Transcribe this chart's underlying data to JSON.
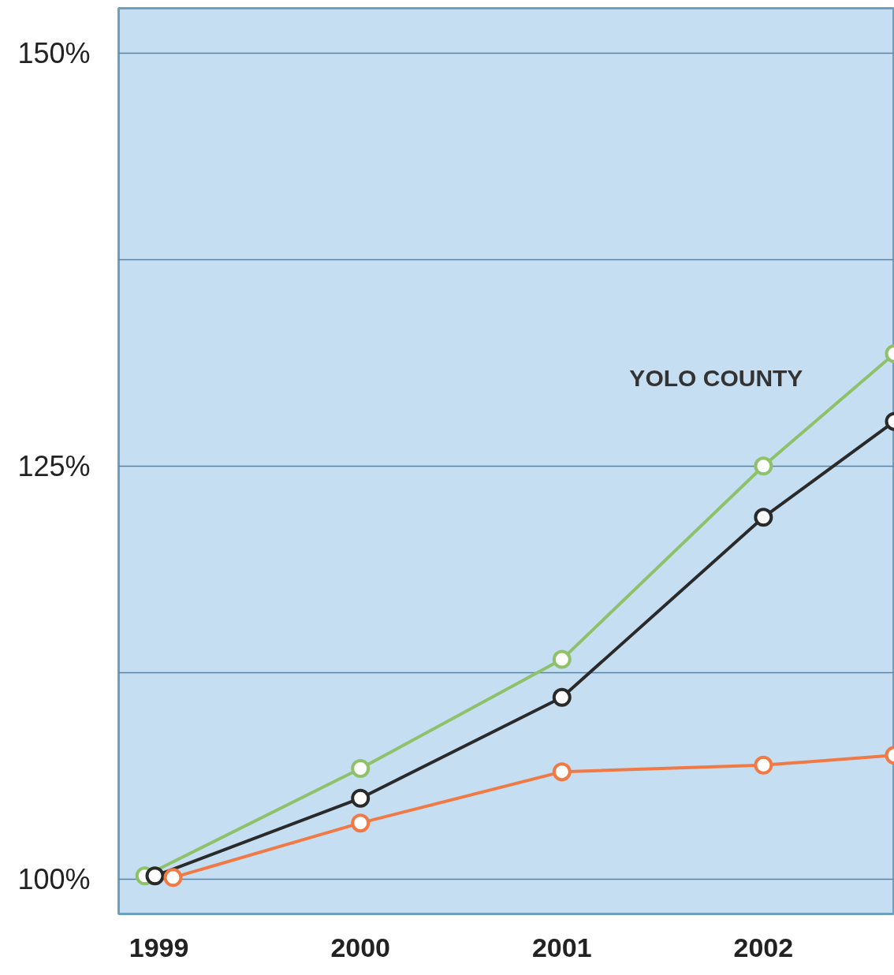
{
  "chart_data": {
    "type": "line",
    "xlim": [
      1998.8,
      2002.65
    ],
    "ylim": [
      97.9,
      152.7
    ],
    "xticks": [
      1999,
      2000,
      2001,
      2002
    ],
    "yticks": [
      {
        "value": 100,
        "label": "100%"
      },
      {
        "value": 112.5,
        "label": null
      },
      {
        "value": 125,
        "label": "125%"
      },
      {
        "value": 137.5,
        "label": null
      },
      {
        "value": 150,
        "label": "150%"
      }
    ],
    "grid": "y",
    "marker": "circle",
    "line_style": "solid",
    "series": [
      {
        "name": "YOLO COUNTY",
        "color": "#8fc06a",
        "x": [
          1998.93,
          2000,
          2001,
          2002,
          2002.65
        ],
        "values": [
          100.2,
          106.7,
          113.3,
          125.0,
          131.8
        ]
      },
      {
        "color": "#2a2a2a",
        "x": [
          1998.98,
          2000,
          2001,
          2002,
          2002.65
        ],
        "values": [
          100.2,
          104.9,
          111.0,
          121.9,
          127.7
        ]
      },
      {
        "color": "#f07a45",
        "x": [
          1999.07,
          2000,
          2001,
          2002,
          2002.65
        ],
        "values": [
          100.1,
          103.4,
          106.5,
          106.9,
          107.5
        ]
      }
    ]
  }
}
